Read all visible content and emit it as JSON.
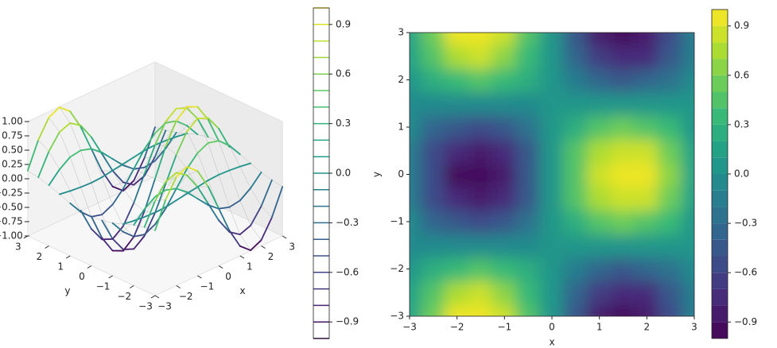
{
  "chart_data": [
    {
      "type": "contour3d",
      "xlabel": "x",
      "ylabel": "y",
      "x": [
        -3,
        -2.5,
        -2,
        -1.5,
        -1,
        -0.5,
        0,
        0.5,
        1,
        1.5,
        2,
        2.5,
        3
      ],
      "y": [
        -3,
        -2.5,
        -2,
        -1.5,
        -1,
        -0.5,
        0,
        0.5,
        1,
        1.5,
        2,
        2.5,
        3
      ],
      "z": [
        [
          0.14,
          0.59,
          0.9,
          0.99,
          0.83,
          0.47,
          0,
          -0.47,
          -0.83,
          -0.99,
          -0.9,
          -0.59,
          -0.14
        ],
        [
          0.11,
          0.48,
          0.73,
          0.8,
          0.67,
          0.38,
          0,
          -0.38,
          -0.67,
          -0.8,
          -0.73,
          -0.48,
          -0.11
        ],
        [
          0.06,
          0.25,
          0.38,
          0.41,
          0.35,
          0.2,
          0,
          -0.2,
          -0.35,
          -0.41,
          -0.38,
          -0.25,
          -0.06
        ],
        [
          -0.01,
          -0.04,
          -0.06,
          -0.07,
          -0.06,
          -0.03,
          0,
          0.03,
          0.06,
          0.07,
          0.06,
          0.04,
          0.01
        ],
        [
          -0.08,
          -0.32,
          -0.49,
          -0.54,
          -0.45,
          -0.26,
          0,
          0.26,
          0.45,
          0.54,
          0.49,
          0.32,
          0.08
        ],
        [
          -0.12,
          -0.53,
          -0.8,
          -0.88,
          -0.74,
          -0.42,
          0,
          0.42,
          0.74,
          0.88,
          0.8,
          0.53,
          0.12
        ],
        [
          -0.14,
          -0.6,
          -0.91,
          -1.0,
          -0.84,
          -0.48,
          0,
          0.48,
          0.84,
          1.0,
          0.91,
          0.6,
          0.14
        ],
        [
          -0.12,
          -0.53,
          -0.8,
          -0.88,
          -0.74,
          -0.42,
          0,
          0.42,
          0.74,
          0.88,
          0.8,
          0.53,
          0.12
        ],
        [
          -0.08,
          -0.32,
          -0.49,
          -0.54,
          -0.45,
          -0.26,
          0,
          0.26,
          0.45,
          0.54,
          0.49,
          0.32,
          0.08
        ],
        [
          -0.01,
          -0.04,
          -0.06,
          -0.07,
          -0.06,
          -0.03,
          0,
          0.03,
          0.06,
          0.07,
          0.06,
          0.04,
          0.01
        ],
        [
          0.06,
          0.25,
          0.38,
          0.41,
          0.35,
          0.2,
          0,
          -0.2,
          -0.35,
          -0.41,
          -0.38,
          -0.25,
          -0.06
        ],
        [
          0.11,
          0.48,
          0.73,
          0.8,
          0.67,
          0.38,
          0,
          -0.38,
          -0.67,
          -0.8,
          -0.73,
          -0.48,
          -0.11
        ],
        [
          0.14,
          0.59,
          0.9,
          0.99,
          0.83,
          0.47,
          0,
          -0.47,
          -0.83,
          -0.99,
          -0.9,
          -0.59,
          -0.14
        ]
      ],
      "xlim": [
        -3,
        3
      ],
      "ylim": [
        -3,
        3
      ],
      "zlim": [
        -1,
        1
      ],
      "xticks": [
        {
          "value": -3,
          "label": "−3"
        },
        {
          "value": -2,
          "label": "−2"
        },
        {
          "value": -1,
          "label": "−1"
        },
        0,
        1,
        2,
        3
      ],
      "yticks": [
        {
          "value": -3,
          "label": "−3"
        },
        {
          "value": -2,
          "label": "−2"
        },
        {
          "value": -1,
          "label": "−1"
        },
        0,
        1,
        2,
        3
      ],
      "zticks": [
        {
          "value": 1,
          "label": "1.00"
        },
        {
          "value": 0.75,
          "label": "0.75"
        },
        {
          "value": 0.5,
          "label": "0.50"
        },
        {
          "value": 0.25,
          "label": "0.25"
        },
        {
          "value": 0,
          "label": "0.00"
        },
        {
          "value": -0.25,
          "label": "−0.25"
        },
        {
          "value": -0.5,
          "label": "−0.50"
        },
        {
          "value": -0.75,
          "label": "−0.75"
        },
        {
          "value": -1,
          "label": "−1.00"
        }
      ],
      "levels": [
        -1,
        -0.9,
        -0.8,
        -0.7,
        -0.6,
        -0.5,
        -0.4,
        -0.3,
        -0.2,
        -0.1,
        0,
        0.1,
        0.2,
        0.3,
        0.4,
        0.5,
        0.6,
        0.7,
        0.8,
        0.9,
        1
      ],
      "colorbar_lim": [
        -1,
        1
      ],
      "colorbar_ticks": [
        {
          "value": 0.9,
          "label": "0.9"
        },
        {
          "value": 0.6,
          "label": "0.6"
        },
        {
          "value": 0.3,
          "label": "0.3"
        },
        {
          "value": 0,
          "label": "0.0"
        },
        {
          "value": -0.3,
          "label": "−0.3"
        },
        {
          "value": -0.6,
          "label": "−0.6"
        },
        {
          "value": -0.9,
          "label": "−0.9"
        }
      ],
      "colormap": "viridis"
    },
    {
      "type": "contourf",
      "xlabel": "x",
      "ylabel": "y",
      "x": [
        -3,
        -2.5,
        -2,
        -1.5,
        -1,
        -0.5,
        0,
        0.5,
        1,
        1.5,
        2,
        2.5,
        3
      ],
      "y": [
        -3,
        -2.5,
        -2,
        -1.5,
        -1,
        -0.5,
        0,
        0.5,
        1,
        1.5,
        2,
        2.5,
        3
      ],
      "z": [
        [
          0.14,
          0.59,
          0.9,
          0.99,
          0.83,
          0.47,
          0,
          -0.47,
          -0.83,
          -0.99,
          -0.9,
          -0.59,
          -0.14
        ],
        [
          0.11,
          0.48,
          0.73,
          0.8,
          0.67,
          0.38,
          0,
          -0.38,
          -0.67,
          -0.8,
          -0.73,
          -0.48,
          -0.11
        ],
        [
          0.06,
          0.25,
          0.38,
          0.41,
          0.35,
          0.2,
          0,
          -0.2,
          -0.35,
          -0.41,
          -0.38,
          -0.25,
          -0.06
        ],
        [
          -0.01,
          -0.04,
          -0.06,
          -0.07,
          -0.06,
          -0.03,
          0,
          0.03,
          0.06,
          0.07,
          0.06,
          0.04,
          0.01
        ],
        [
          -0.08,
          -0.32,
          -0.49,
          -0.54,
          -0.45,
          -0.26,
          0,
          0.26,
          0.45,
          0.54,
          0.49,
          0.32,
          0.08
        ],
        [
          -0.12,
          -0.53,
          -0.8,
          -0.88,
          -0.74,
          -0.42,
          0,
          0.42,
          0.74,
          0.88,
          0.8,
          0.53,
          0.12
        ],
        [
          -0.14,
          -0.6,
          -0.91,
          -1.0,
          -0.84,
          -0.48,
          0,
          0.48,
          0.84,
          1.0,
          0.91,
          0.6,
          0.14
        ],
        [
          -0.12,
          -0.53,
          -0.8,
          -0.88,
          -0.74,
          -0.42,
          0,
          0.42,
          0.74,
          0.88,
          0.8,
          0.53,
          0.12
        ],
        [
          -0.08,
          -0.32,
          -0.49,
          -0.54,
          -0.45,
          -0.26,
          0,
          0.26,
          0.45,
          0.54,
          0.49,
          0.32,
          0.08
        ],
        [
          -0.01,
          -0.04,
          -0.06,
          -0.07,
          -0.06,
          -0.03,
          0,
          0.03,
          0.06,
          0.07,
          0.06,
          0.04,
          0.01
        ],
        [
          0.06,
          0.25,
          0.38,
          0.41,
          0.35,
          0.2,
          0,
          -0.2,
          -0.35,
          -0.41,
          -0.38,
          -0.25,
          -0.06
        ],
        [
          0.11,
          0.48,
          0.73,
          0.8,
          0.67,
          0.38,
          0,
          -0.38,
          -0.67,
          -0.8,
          -0.73,
          -0.48,
          -0.11
        ],
        [
          0.14,
          0.59,
          0.9,
          0.99,
          0.83,
          0.47,
          0,
          -0.47,
          -0.83,
          -0.99,
          -0.9,
          -0.59,
          -0.14
        ]
      ],
      "xlim": [
        -3,
        3
      ],
      "ylim": [
        -3,
        3
      ],
      "xticks": [
        {
          "value": -3,
          "label": "−3"
        },
        {
          "value": -2,
          "label": "−2"
        },
        {
          "value": -1,
          "label": "−1"
        },
        0,
        1,
        2,
        3
      ],
      "yticks": [
        {
          "value": -3,
          "label": "−3"
        },
        {
          "value": -2,
          "label": "−2"
        },
        {
          "value": -1,
          "label": "−1"
        },
        0,
        1,
        2,
        3
      ],
      "levels": [
        -1,
        -0.9,
        -0.8,
        -0.7,
        -0.6,
        -0.5,
        -0.4,
        -0.3,
        -0.2,
        -0.1,
        0,
        0.1,
        0.2,
        0.3,
        0.4,
        0.5,
        0.6,
        0.7,
        0.8,
        0.9,
        1
      ],
      "colorbar_lim": [
        -1,
        1
      ],
      "colorbar_ticks": [
        {
          "value": 0.9,
          "label": "0.9"
        },
        {
          "value": 0.6,
          "label": "0.6"
        },
        {
          "value": 0.3,
          "label": "0.3"
        },
        {
          "value": 0,
          "label": "0.0"
        },
        {
          "value": -0.3,
          "label": "−0.3"
        },
        {
          "value": -0.6,
          "label": "−0.6"
        },
        {
          "value": -0.9,
          "label": "−0.9"
        }
      ],
      "colormap": "viridis"
    }
  ]
}
